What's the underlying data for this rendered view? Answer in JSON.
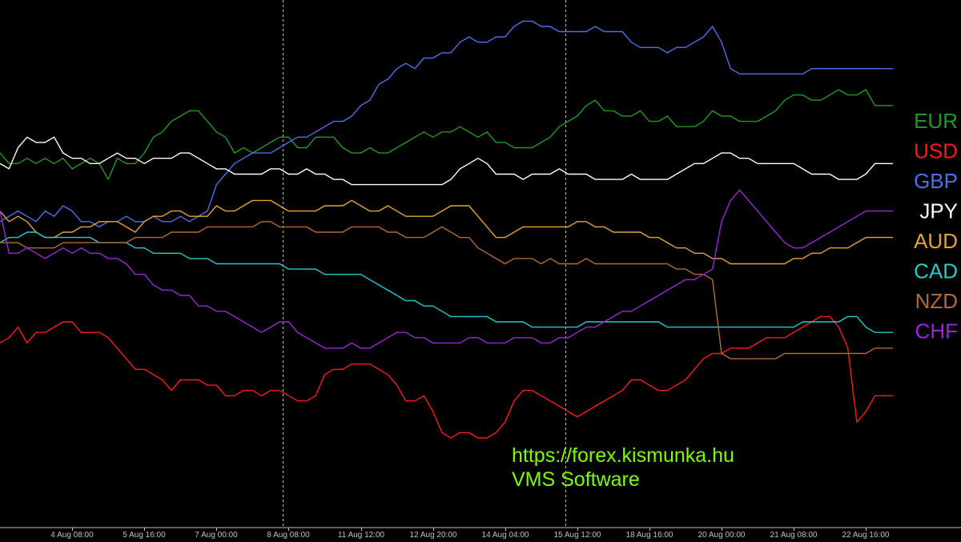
{
  "colors": {
    "background": "#000000",
    "axis": "#c0c0c0",
    "divider": "#bdbdbd",
    "watermark": "#7CFC00"
  },
  "watermark": {
    "line1": "https://forex.kismunka.hu",
    "line2": "VMS Software"
  },
  "chart_data": {
    "type": "line",
    "title": "",
    "xlabel": "",
    "ylabel": "",
    "grid": false,
    "legend_position": "right",
    "x_ticks": [
      "4 Aug 08:00",
      "5 Aug 16:00",
      "7 Aug 00:00",
      "8 Aug 08:00",
      "11 Aug 12:00",
      "12 Aug 20:00",
      "14 Aug 04:00",
      "15 Aug 12:00",
      "18 Aug 16:00",
      "20 Aug 00:00",
      "21 Aug 08:00",
      "22 Aug 16:00"
    ],
    "x_tick_index": [
      8,
      16,
      24,
      32,
      40,
      48,
      56,
      64,
      72,
      80,
      88,
      96
    ],
    "dividers_index": [
      31.3,
      62.7
    ],
    "x_count": 100,
    "ylim": [
      0,
      100
    ],
    "series": [
      {
        "name": "EUR",
        "color": "#1c9c1c",
        "values": [
          71,
          69,
          69,
          70,
          69,
          70,
          69,
          70,
          68,
          69,
          70,
          69,
          66,
          70,
          69,
          69,
          71,
          74,
          75,
          77,
          78,
          79,
          79,
          77,
          75,
          74,
          71,
          72,
          71,
          72,
          73,
          74,
          74,
          72,
          72,
          74,
          74,
          74,
          72,
          71,
          71,
          72,
          71,
          71,
          72,
          73,
          74,
          75,
          74,
          75,
          75,
          76,
          75,
          74,
          75,
          73,
          73,
          72,
          72,
          72,
          73,
          74,
          76,
          77,
          78,
          80,
          81,
          79,
          79,
          78,
          78,
          79,
          77,
          77,
          78,
          76,
          76,
          76,
          77,
          79,
          78,
          78,
          77,
          77,
          77,
          78,
          79,
          81,
          82,
          82,
          81,
          81,
          82,
          83,
          82,
          82,
          83,
          80,
          80,
          80
        ]
      },
      {
        "name": "USD",
        "color": "#ff1818",
        "values": [
          35,
          36,
          38,
          35,
          37,
          37,
          38,
          39,
          39,
          37,
          37,
          37,
          36,
          34,
          32,
          30,
          30,
          29,
          28,
          26,
          28,
          28,
          28,
          27,
          27,
          25,
          25,
          26,
          26,
          25,
          26,
          26,
          25,
          24,
          24,
          25,
          29,
          30,
          30,
          31,
          31,
          31,
          30,
          29,
          27,
          24,
          24,
          25,
          22,
          18,
          17,
          18,
          18,
          17,
          17,
          18,
          20,
          24,
          26,
          26,
          25,
          24,
          23,
          22,
          21,
          22,
          23,
          24,
          25,
          26,
          28,
          28,
          27,
          26,
          26,
          27,
          28,
          30,
          32,
          33,
          33,
          34,
          34,
          34,
          35,
          36,
          36,
          36,
          37,
          38,
          39,
          40,
          40,
          38,
          34,
          20,
          22,
          25,
          25,
          25
        ]
      },
      {
        "name": "GBP",
        "color": "#4f6fea",
        "values": [
          58,
          59,
          60,
          59,
          58,
          60,
          59,
          61,
          60,
          58,
          58,
          57,
          58,
          58,
          59,
          58,
          58,
          59,
          58,
          58,
          59,
          58,
          59,
          60,
          65,
          67,
          69,
          70,
          71,
          71,
          71,
          72,
          73,
          74,
          74,
          75,
          76,
          77,
          77,
          78,
          80,
          81,
          84,
          85,
          87,
          88,
          87,
          89,
          89,
          90,
          90,
          92,
          93,
          92,
          92,
          93,
          93,
          95,
          96,
          96,
          95,
          95,
          94,
          94,
          94,
          94,
          95,
          94,
          94,
          94,
          92,
          91,
          91,
          91,
          90,
          91,
          91,
          92,
          93,
          95,
          92,
          87,
          86,
          86,
          86,
          86,
          86,
          86,
          86,
          86,
          87,
          87,
          87,
          87,
          87,
          87,
          87,
          87,
          87,
          87
        ]
      },
      {
        "name": "JPY",
        "color": "#ffffff",
        "values": [
          69,
          68,
          72,
          74,
          73,
          73,
          74,
          71,
          70,
          70,
          69,
          69,
          70,
          71,
          70,
          70,
          69,
          70,
          70,
          70,
          71,
          71,
          70,
          69,
          68,
          68,
          67,
          67,
          67,
          67,
          68,
          68,
          67,
          67,
          68,
          67,
          67,
          66,
          66,
          65,
          65,
          65,
          65,
          65,
          65,
          65,
          65,
          65,
          65,
          65,
          66,
          68,
          69,
          70,
          69,
          67,
          67,
          67,
          66,
          67,
          67,
          67,
          68,
          67,
          67,
          67,
          66,
          66,
          66,
          66,
          67,
          66,
          66,
          66,
          66,
          67,
          68,
          69,
          69,
          70,
          71,
          71,
          70,
          70,
          69,
          69,
          69,
          69,
          69,
          68,
          67,
          67,
          67,
          66,
          66,
          66,
          67,
          69,
          69,
          69
        ]
      },
      {
        "name": "AUD",
        "color": "#e6a432",
        "values": [
          60,
          58,
          59,
          58,
          56,
          55,
          55,
          56,
          56,
          57,
          57,
          58,
          58,
          58,
          57,
          56,
          58,
          59,
          59,
          60,
          60,
          59,
          59,
          59,
          61,
          60,
          60,
          61,
          62,
          62,
          62,
          61,
          60,
          60,
          60,
          60,
          61,
          61,
          61,
          62,
          61,
          60,
          60,
          61,
          60,
          59,
          59,
          59,
          59,
          60,
          61,
          61,
          61,
          59,
          57,
          55,
          55,
          56,
          57,
          57,
          57,
          57,
          57,
          57,
          58,
          58,
          57,
          57,
          56,
          56,
          56,
          56,
          55,
          55,
          54,
          53,
          53,
          52,
          52,
          51,
          51,
          50,
          50,
          50,
          50,
          50,
          50,
          50,
          51,
          51,
          52,
          52,
          53,
          53,
          53,
          54,
          55,
          55,
          55,
          55
        ]
      },
      {
        "name": "CAD",
        "color": "#22cccc",
        "values": [
          54,
          55,
          55,
          56,
          56,
          55,
          55,
          55,
          55,
          55,
          55,
          54,
          54,
          54,
          54,
          53,
          53,
          52,
          52,
          52,
          52,
          51,
          51,
          51,
          50,
          50,
          50,
          50,
          50,
          50,
          50,
          50,
          49,
          49,
          49,
          49,
          48,
          48,
          48,
          48,
          48,
          47,
          46,
          45,
          44,
          43,
          43,
          42,
          42,
          41,
          40,
          40,
          40,
          40,
          40,
          39,
          39,
          39,
          39,
          38,
          38,
          38,
          38,
          38,
          38,
          39,
          39,
          39,
          39,
          39,
          39,
          39,
          39,
          39,
          38,
          38,
          38,
          38,
          38,
          38,
          38,
          38,
          38,
          38,
          38,
          38,
          38,
          38,
          38,
          39,
          39,
          39,
          39,
          39,
          40,
          40,
          38,
          37,
          37,
          37
        ]
      },
      {
        "name": "NZD",
        "color": "#b46a2c",
        "values": [
          54,
          54,
          54,
          53,
          53,
          53,
          53,
          54,
          54,
          54,
          54,
          54,
          54,
          54,
          54,
          55,
          55,
          55,
          55,
          56,
          56,
          56,
          56,
          57,
          57,
          57,
          57,
          57,
          57,
          58,
          58,
          57,
          57,
          57,
          57,
          56,
          56,
          56,
          56,
          57,
          57,
          57,
          57,
          56,
          56,
          55,
          55,
          55,
          56,
          57,
          56,
          55,
          55,
          53,
          52,
          51,
          50,
          51,
          51,
          51,
          50,
          51,
          50,
          50,
          50,
          51,
          50,
          50,
          50,
          50,
          50,
          50,
          50,
          50,
          50,
          49,
          49,
          48,
          48,
          47,
          33,
          32,
          32,
          32,
          32,
          32,
          32,
          33,
          33,
          33,
          33,
          33,
          33,
          33,
          33,
          33,
          33,
          34,
          34,
          34
        ]
      },
      {
        "name": "CHF",
        "color": "#9b25d8",
        "values": [
          60,
          52,
          52,
          53,
          52,
          51,
          52,
          53,
          52,
          53,
          52,
          52,
          51,
          51,
          50,
          48,
          48,
          46,
          45,
          45,
          44,
          44,
          42,
          42,
          41,
          41,
          40,
          39,
          38,
          37,
          38,
          39,
          39,
          37,
          36,
          35,
          34,
          34,
          34,
          35,
          34,
          34,
          35,
          36,
          37,
          37,
          36,
          36,
          35,
          35,
          35,
          35,
          36,
          36,
          35,
          35,
          35,
          36,
          36,
          36,
          35,
          35,
          36,
          36,
          37,
          38,
          38,
          39,
          40,
          41,
          41,
          42,
          43,
          44,
          45,
          46,
          47,
          47,
          48,
          49,
          58,
          62,
          64,
          62,
          60,
          58,
          56,
          54,
          53,
          53,
          54,
          55,
          56,
          57,
          58,
          59,
          60,
          60,
          60,
          60
        ]
      }
    ]
  }
}
